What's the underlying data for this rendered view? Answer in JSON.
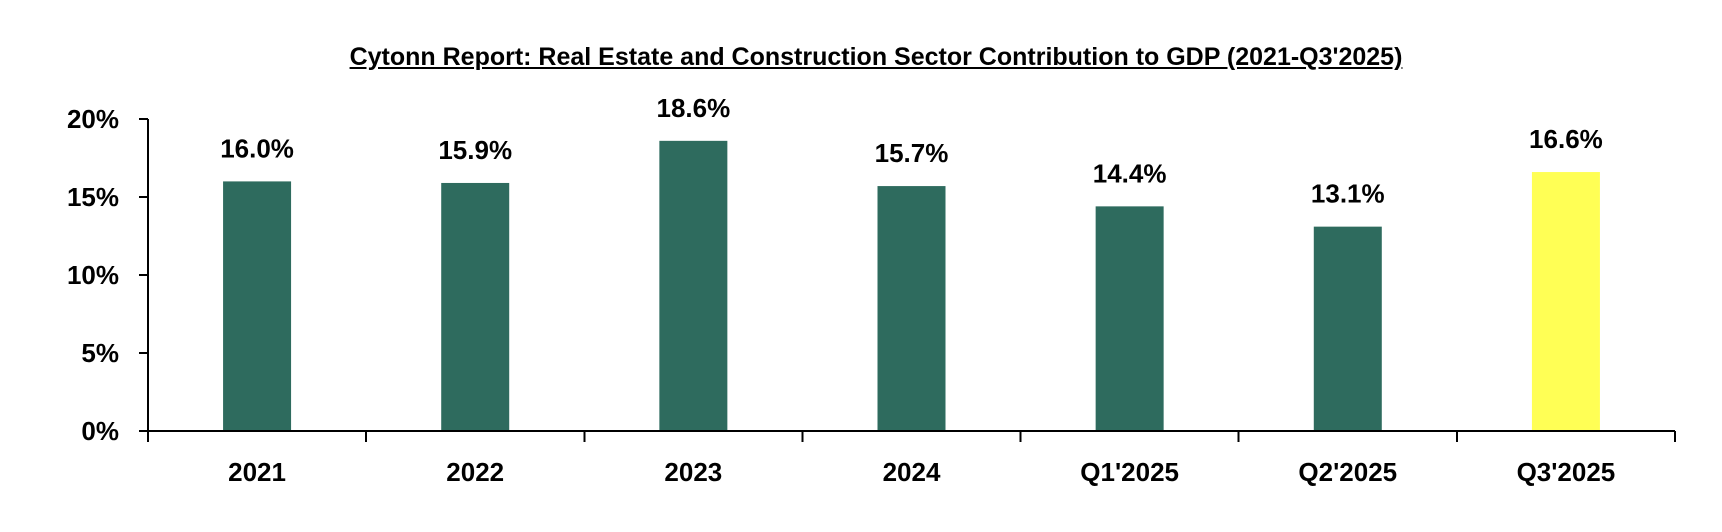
{
  "chart_data": {
    "type": "bar",
    "title": "Cytonn Report: Real Estate and Construction Sector Contribution to GDP (2021-Q3'2025)",
    "categories": [
      "2021",
      "2022",
      "2023",
      "2024",
      "Q1'2025",
      "Q2'2025",
      "Q3'2025"
    ],
    "values": [
      16.0,
      15.9,
      18.6,
      15.7,
      14.4,
      13.1,
      16.6
    ],
    "value_labels": [
      "16.0%",
      "15.9%",
      "18.6%",
      "15.7%",
      "14.4%",
      "13.1%",
      "16.6%"
    ],
    "ylim": [
      0,
      20
    ],
    "yticks": [
      0,
      5,
      10,
      15,
      20
    ],
    "ytick_labels": [
      "0%",
      "5%",
      "10%",
      "15%",
      "20%"
    ],
    "grid": false,
    "bar_colors": [
      "#2E6B5E",
      "#2E6B5E",
      "#2E6B5E",
      "#2E6B5E",
      "#2E6B5E",
      "#2E6B5E",
      "#FFFF55"
    ]
  }
}
